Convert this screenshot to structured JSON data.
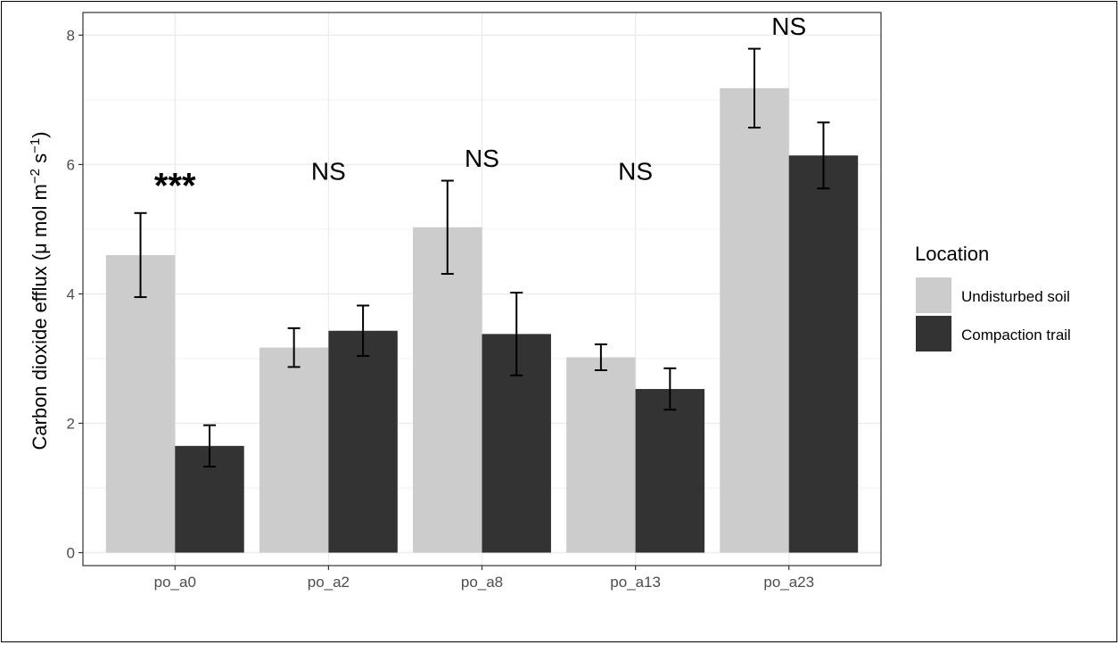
{
  "chart_data": {
    "type": "bar",
    "categories": [
      "po_a0",
      "po_a2",
      "po_a8",
      "po_a13",
      "po_a23"
    ],
    "series": [
      {
        "name": "Undisturbed soil",
        "color": "#cccccc",
        "values": [
          4.6,
          3.17,
          5.03,
          3.02,
          7.18
        ],
        "errors": [
          0.65,
          0.3,
          0.72,
          0.2,
          0.61
        ]
      },
      {
        "name": "Compaction trail",
        "color": "#333333",
        "values": [
          1.65,
          3.43,
          3.38,
          2.53,
          6.14
        ],
        "errors": [
          0.32,
          0.39,
          0.64,
          0.32,
          0.51
        ]
      }
    ],
    "annotations": [
      "***",
      "NS",
      "NS",
      "NS",
      "NS"
    ],
    "ylabel_main": "Carbon dioxide efflux (",
    "ylabel_unit_mu": "μ",
    "ylabel_unit_mol": " mol m",
    "ylabel_unit_exp1": "−2",
    "ylabel_unit_s": " s",
    "ylabel_unit_exp2": "−1",
    "ylabel_close": ")",
    "xlabel": "",
    "yticks": [
      0,
      2,
      4,
      6,
      8
    ],
    "ylim": [
      -0.2,
      8.35
    ],
    "legend_title": "Location",
    "legend_position": "right",
    "grid": true
  }
}
